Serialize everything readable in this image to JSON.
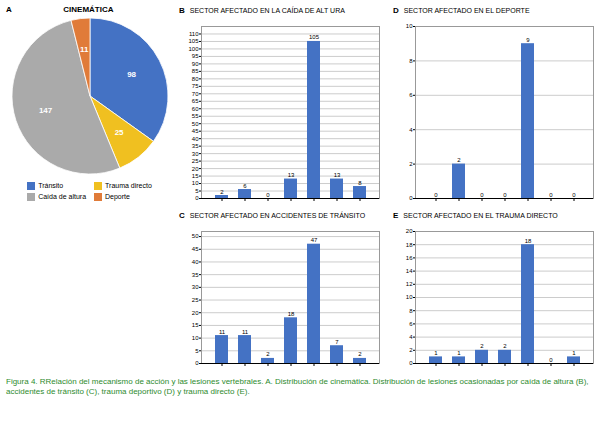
{
  "caption": "Figura 4. RRelación del mecanismo de acción y las lesiones vertebrales. A. Distribución de cinemática. Distribución de lesiones ocasionadas por caída de altura (B), accidentes de tránsito (C), trauma deportivo (D) y trauma directo (E).",
  "chart_data": [
    {
      "type": "pie",
      "title": "CINEMÁTICA",
      "annotations": [
        "A"
      ],
      "categories": [
        "Tránsito",
        "Trauma directo",
        "Caída de altura",
        "Deporte"
      ],
      "values": [
        98,
        25,
        147,
        11
      ],
      "colors": [
        "#4472C4",
        "#F0C020",
        "#AAAAAA",
        "#E07B39"
      ],
      "data_labels": true,
      "legend": "bottom"
    },
    {
      "type": "bar",
      "title": "SECTOR AFECTADO EN LA CAÍDA DE ALT URA",
      "annotations": [
        "B"
      ],
      "categories": [
        null,
        null,
        null,
        null,
        null,
        null,
        null
      ],
      "values": [
        2,
        6,
        0,
        13,
        105,
        13,
        8
      ],
      "color": "#4472C4",
      "ylim": [
        0,
        115
      ],
      "yticks": [
        0,
        5,
        10,
        15,
        20,
        25,
        30,
        35,
        40,
        45,
        50,
        55,
        60,
        65,
        70,
        75,
        80,
        85,
        90,
        95,
        100,
        105,
        110
      ],
      "grid": true,
      "data_labels": true,
      "tick_labels": "y"
    },
    {
      "type": "bar",
      "title": "SECTOR AFECTADO EN EL DEPORTE",
      "annotations": [
        "D"
      ],
      "categories": [
        null,
        null,
        null,
        null,
        null,
        null,
        null
      ],
      "values": [
        0,
        2,
        0,
        0,
        9,
        0,
        0
      ],
      "color": "#4472C4",
      "ylim": [
        0,
        10
      ],
      "yticks": [
        0,
        2,
        4,
        6,
        8,
        10
      ],
      "grid": true,
      "data_labels": true,
      "tick_labels": "y"
    },
    {
      "type": "bar",
      "title": "SECTOR AFECTADO EN ACCIDENTES DE TRÁNSITO",
      "annotations": [
        "C"
      ],
      "categories": [
        null,
        null,
        null,
        null,
        null,
        null,
        null
      ],
      "values": [
        11,
        11,
        2,
        18,
        47,
        7,
        2
      ],
      "color": "#4472C4",
      "ylim": [
        0,
        52
      ],
      "yticks": [
        0,
        5,
        10,
        15,
        20,
        25,
        30,
        35,
        40,
        45,
        50
      ],
      "grid": true,
      "data_labels": true,
      "tick_labels": "y"
    },
    {
      "type": "bar",
      "title": "SECTOR AFECTADO EN EL TRAUMA DIRECTO",
      "annotations": [
        "E"
      ],
      "categories": [
        null,
        null,
        null,
        null,
        null,
        null,
        null
      ],
      "values": [
        1,
        1,
        2,
        2,
        18,
        0,
        1
      ],
      "color": "#4472C4",
      "ylim": [
        0,
        20
      ],
      "yticks": [
        0,
        2,
        4,
        6,
        8,
        10,
        12,
        14,
        16,
        18,
        20
      ],
      "grid": true,
      "data_labels": true,
      "tick_labels": "y"
    }
  ]
}
